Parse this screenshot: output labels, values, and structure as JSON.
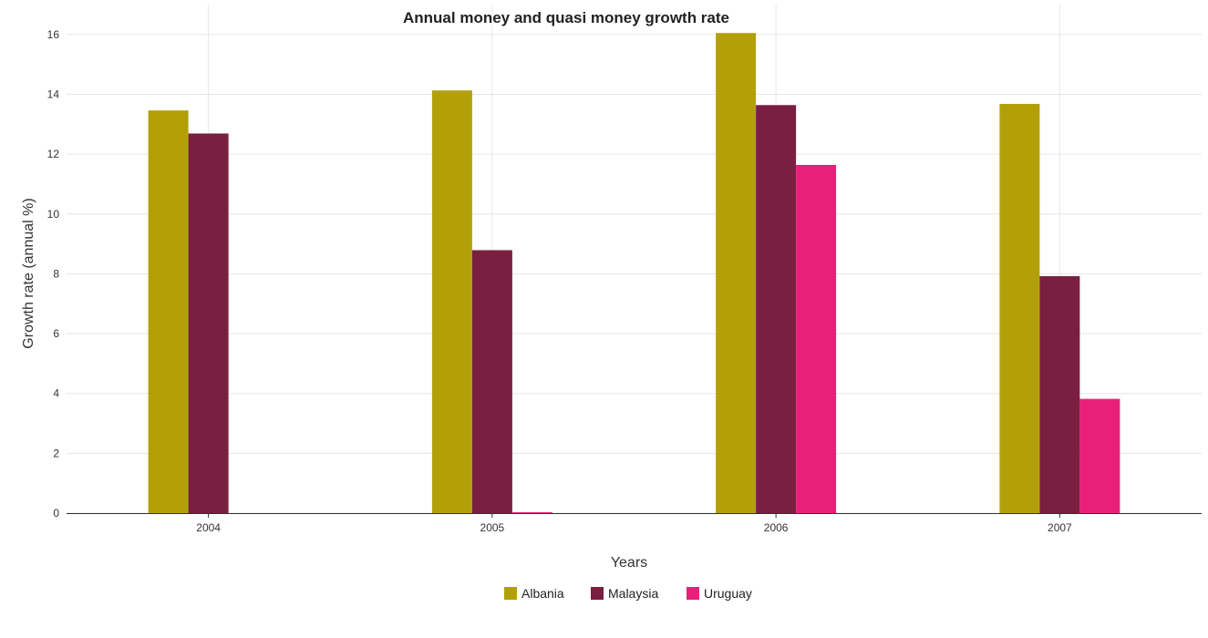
{
  "chart_data": {
    "type": "bar",
    "title": "Annual money and quasi money growth rate",
    "xlabel": "Years",
    "ylabel": "Growth rate (annual %)",
    "categories": [
      "2004",
      "2005",
      "2006",
      "2007"
    ],
    "ylim": [
      0,
      17
    ],
    "yticks": [
      0,
      2,
      4,
      6,
      8,
      10,
      12,
      14,
      16
    ],
    "grid": true,
    "legend_position": "bottom",
    "series": [
      {
        "name": "Albania",
        "color": "#b3a009",
        "values": [
          13.46,
          14.13,
          16.05,
          13.68
        ]
      },
      {
        "name": "Malaysia",
        "color": "#7a1f3f",
        "values": [
          12.69,
          8.79,
          13.64,
          7.92
        ]
      },
      {
        "name": "Uruguay",
        "color": "#e8207c",
        "values": [
          0,
          0.03,
          11.64,
          3.82
        ]
      }
    ]
  }
}
